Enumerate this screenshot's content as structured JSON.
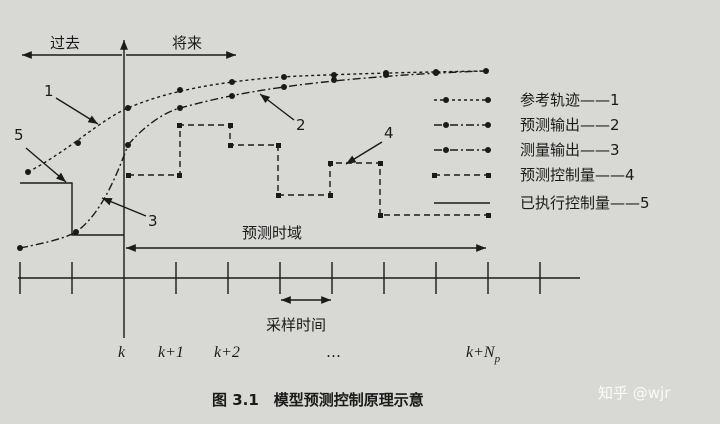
{
  "time": {
    "past": "过去",
    "future": "将来"
  },
  "curve_labels": [
    "1",
    "2",
    "3",
    "4",
    "5"
  ],
  "horizon": "预测时域",
  "sample_time": "采样时间",
  "axis_ticks": [
    "k",
    "k+1",
    "k+2",
    "…",
    {
      "main": "k+N",
      "sub": "p"
    }
  ],
  "legend": [
    "参考轨迹——1",
    "预测输出——2",
    "测量输出——3",
    "预测控制量——4",
    "已执行控制量——5"
  ],
  "caption": "图 3.1　模型预测控制原理示意",
  "watermark": "知乎 @wjr"
}
